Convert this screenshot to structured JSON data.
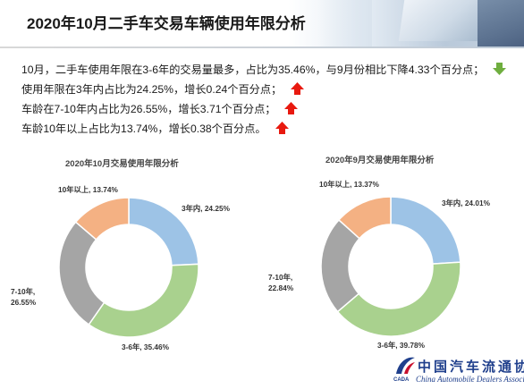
{
  "header": {
    "title": "2020年10月二手车交易车辆使用年限分析"
  },
  "bullets": [
    {
      "text": "10月，二手车使用年限在3-6年的交易量最多，占比为35.46%，与9月份相比下降4.33个百分点；",
      "trend": "down"
    },
    {
      "text": "使用年限在3年内占比为24.25%，增长0.24个百分点；",
      "trend": "up"
    },
    {
      "text": "车龄在7-10年内占比为26.55%，增长3.71个百分点；",
      "trend": "up"
    },
    {
      "text": "车龄10年以上占比为13.74%，增长0.38个百分点。",
      "trend": "up"
    }
  ],
  "colors": {
    "up_arrow": "#e8190f",
    "down_arrow": "#6fae3f",
    "slice_3yr": "#9dc3e6",
    "slice_3_6": "#a9d18e",
    "slice_7_10": "#a5a5a5",
    "slice_10plus": "#f4b183"
  },
  "chart_data": [
    {
      "type": "pie",
      "title": "2020年10月交易使用年限分析",
      "categories": [
        "3年内",
        "3-6年",
        "7-10年",
        "10年以上"
      ],
      "values": [
        24.25,
        35.46,
        26.55,
        13.74
      ],
      "labels": [
        {
          "line1": "3年内, 24.25%"
        },
        {
          "line1": "3-6年, 35.46%"
        },
        {
          "line1": "7-10年,",
          "line2": "26.55%"
        },
        {
          "line1": "10年以上, 13.74%"
        }
      ]
    },
    {
      "type": "pie",
      "title": "2020年9月交易使用年限分析",
      "categories": [
        "3年内",
        "3-6年",
        "7-10年",
        "10年以上"
      ],
      "values": [
        24.01,
        39.78,
        22.84,
        13.37
      ],
      "labels": [
        {
          "line1": "3年内, 24.01%"
        },
        {
          "line1": "3-6年, 39.78%"
        },
        {
          "line1": "7-10年,",
          "line2": "22.84%"
        },
        {
          "line1": "10年以上, 13.37%"
        }
      ]
    }
  ],
  "logo": {
    "name_cn": "中国汽车流通协会",
    "name_en": "China Automobile Dealers Association",
    "abbr": "CADA"
  }
}
